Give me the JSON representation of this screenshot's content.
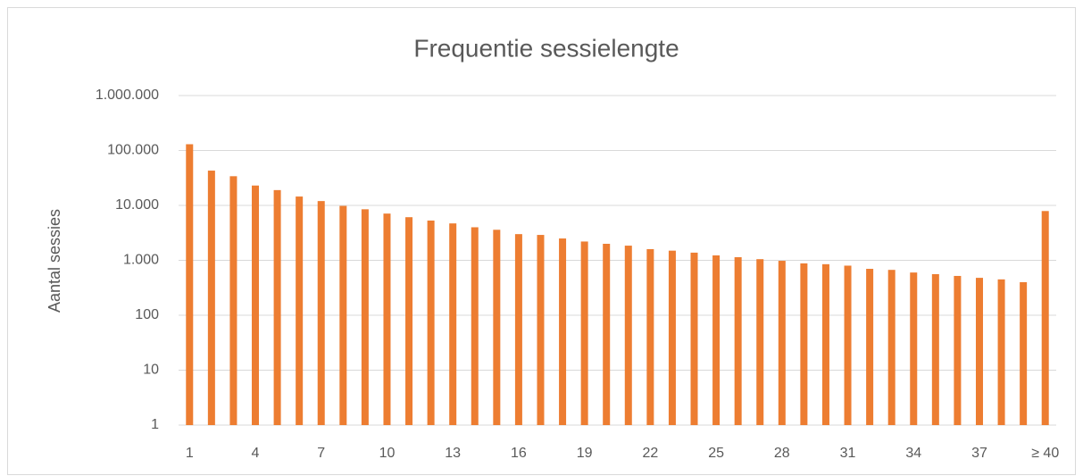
{
  "chart_data": {
    "type": "bar",
    "title": "Frequentie sessielengte",
    "y_label": "Aantal sessies",
    "categories": [
      "1",
      null,
      null,
      "4",
      null,
      null,
      "7",
      null,
      null,
      "10",
      null,
      null,
      "13",
      null,
      null,
      "16",
      null,
      null,
      "19",
      null,
      null,
      "22",
      null,
      null,
      "25",
      null,
      null,
      "28",
      null,
      null,
      "31",
      null,
      null,
      "34",
      null,
      null,
      "37",
      null,
      null,
      "≥ 40"
    ],
    "values": [
      130000,
      43000,
      34000,
      23000,
      19000,
      14500,
      12000,
      9800,
      8500,
      7100,
      6100,
      5300,
      4700,
      4000,
      3600,
      3000,
      2900,
      2500,
      2200,
      2000,
      1850,
      1600,
      1500,
      1380,
      1230,
      1140,
      1050,
      980,
      880,
      850,
      800,
      700,
      670,
      600,
      560,
      520,
      480,
      450,
      400,
      7900
    ],
    "color": "#ED7D31",
    "log_scale": true,
    "grid": true,
    "ylim": [
      1,
      1000000
    ],
    "yticks": [
      1,
      10,
      100,
      {
        "value": 1000,
        "label": "1.000"
      },
      {
        "value": 10000,
        "label": "10.000"
      },
      {
        "value": 100000,
        "label": "100.000"
      },
      {
        "value": 1000000,
        "label": "1.000.000"
      }
    ]
  }
}
